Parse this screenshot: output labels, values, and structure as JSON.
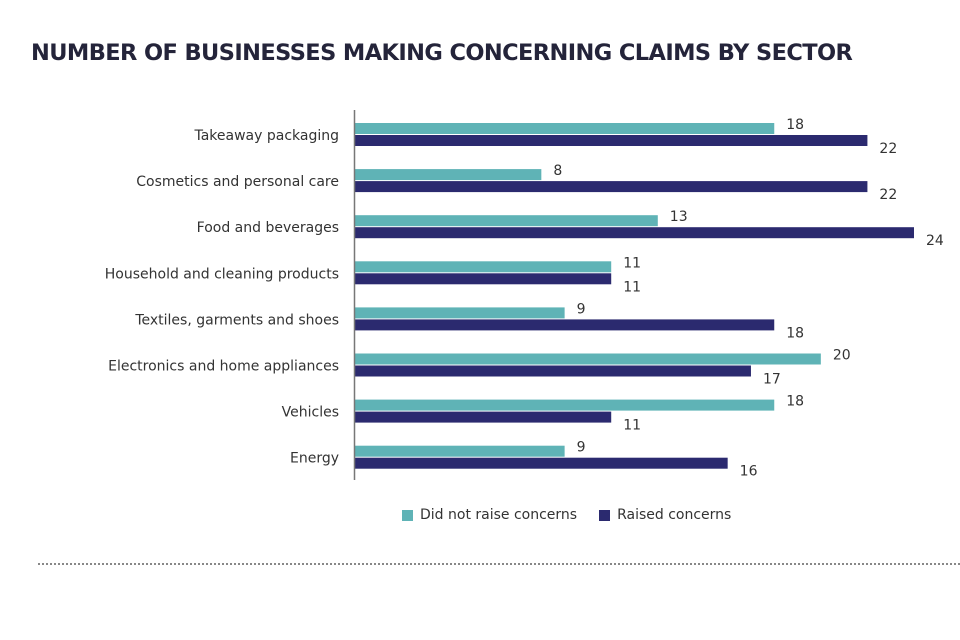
{
  "chart_data": {
    "type": "bar",
    "orientation": "horizontal",
    "title": "NUMBER OF BUSINESSES MAKING CONCERNING CLAIMS BY SECTOR",
    "xlabel": "",
    "ylabel": "",
    "xlim": [
      0,
      24
    ],
    "grid": false,
    "legend_position": "bottom",
    "categories": [
      "Takeaway packaging",
      "Cosmetics and personal care",
      "Food and beverages",
      "Household and cleaning products",
      "Textiles, garments and shoes",
      "Electronics and home appliances",
      "Vehicles",
      "Energy"
    ],
    "series": [
      {
        "name": "Did not raise concerns",
        "color": "#5fb3b6",
        "values": [
          18,
          8,
          13,
          11,
          9,
          20,
          18,
          9
        ]
      },
      {
        "name": "Raised concerns",
        "color": "#2b2a6f",
        "values": [
          22,
          22,
          24,
          11,
          18,
          17,
          11,
          16
        ]
      }
    ]
  }
}
